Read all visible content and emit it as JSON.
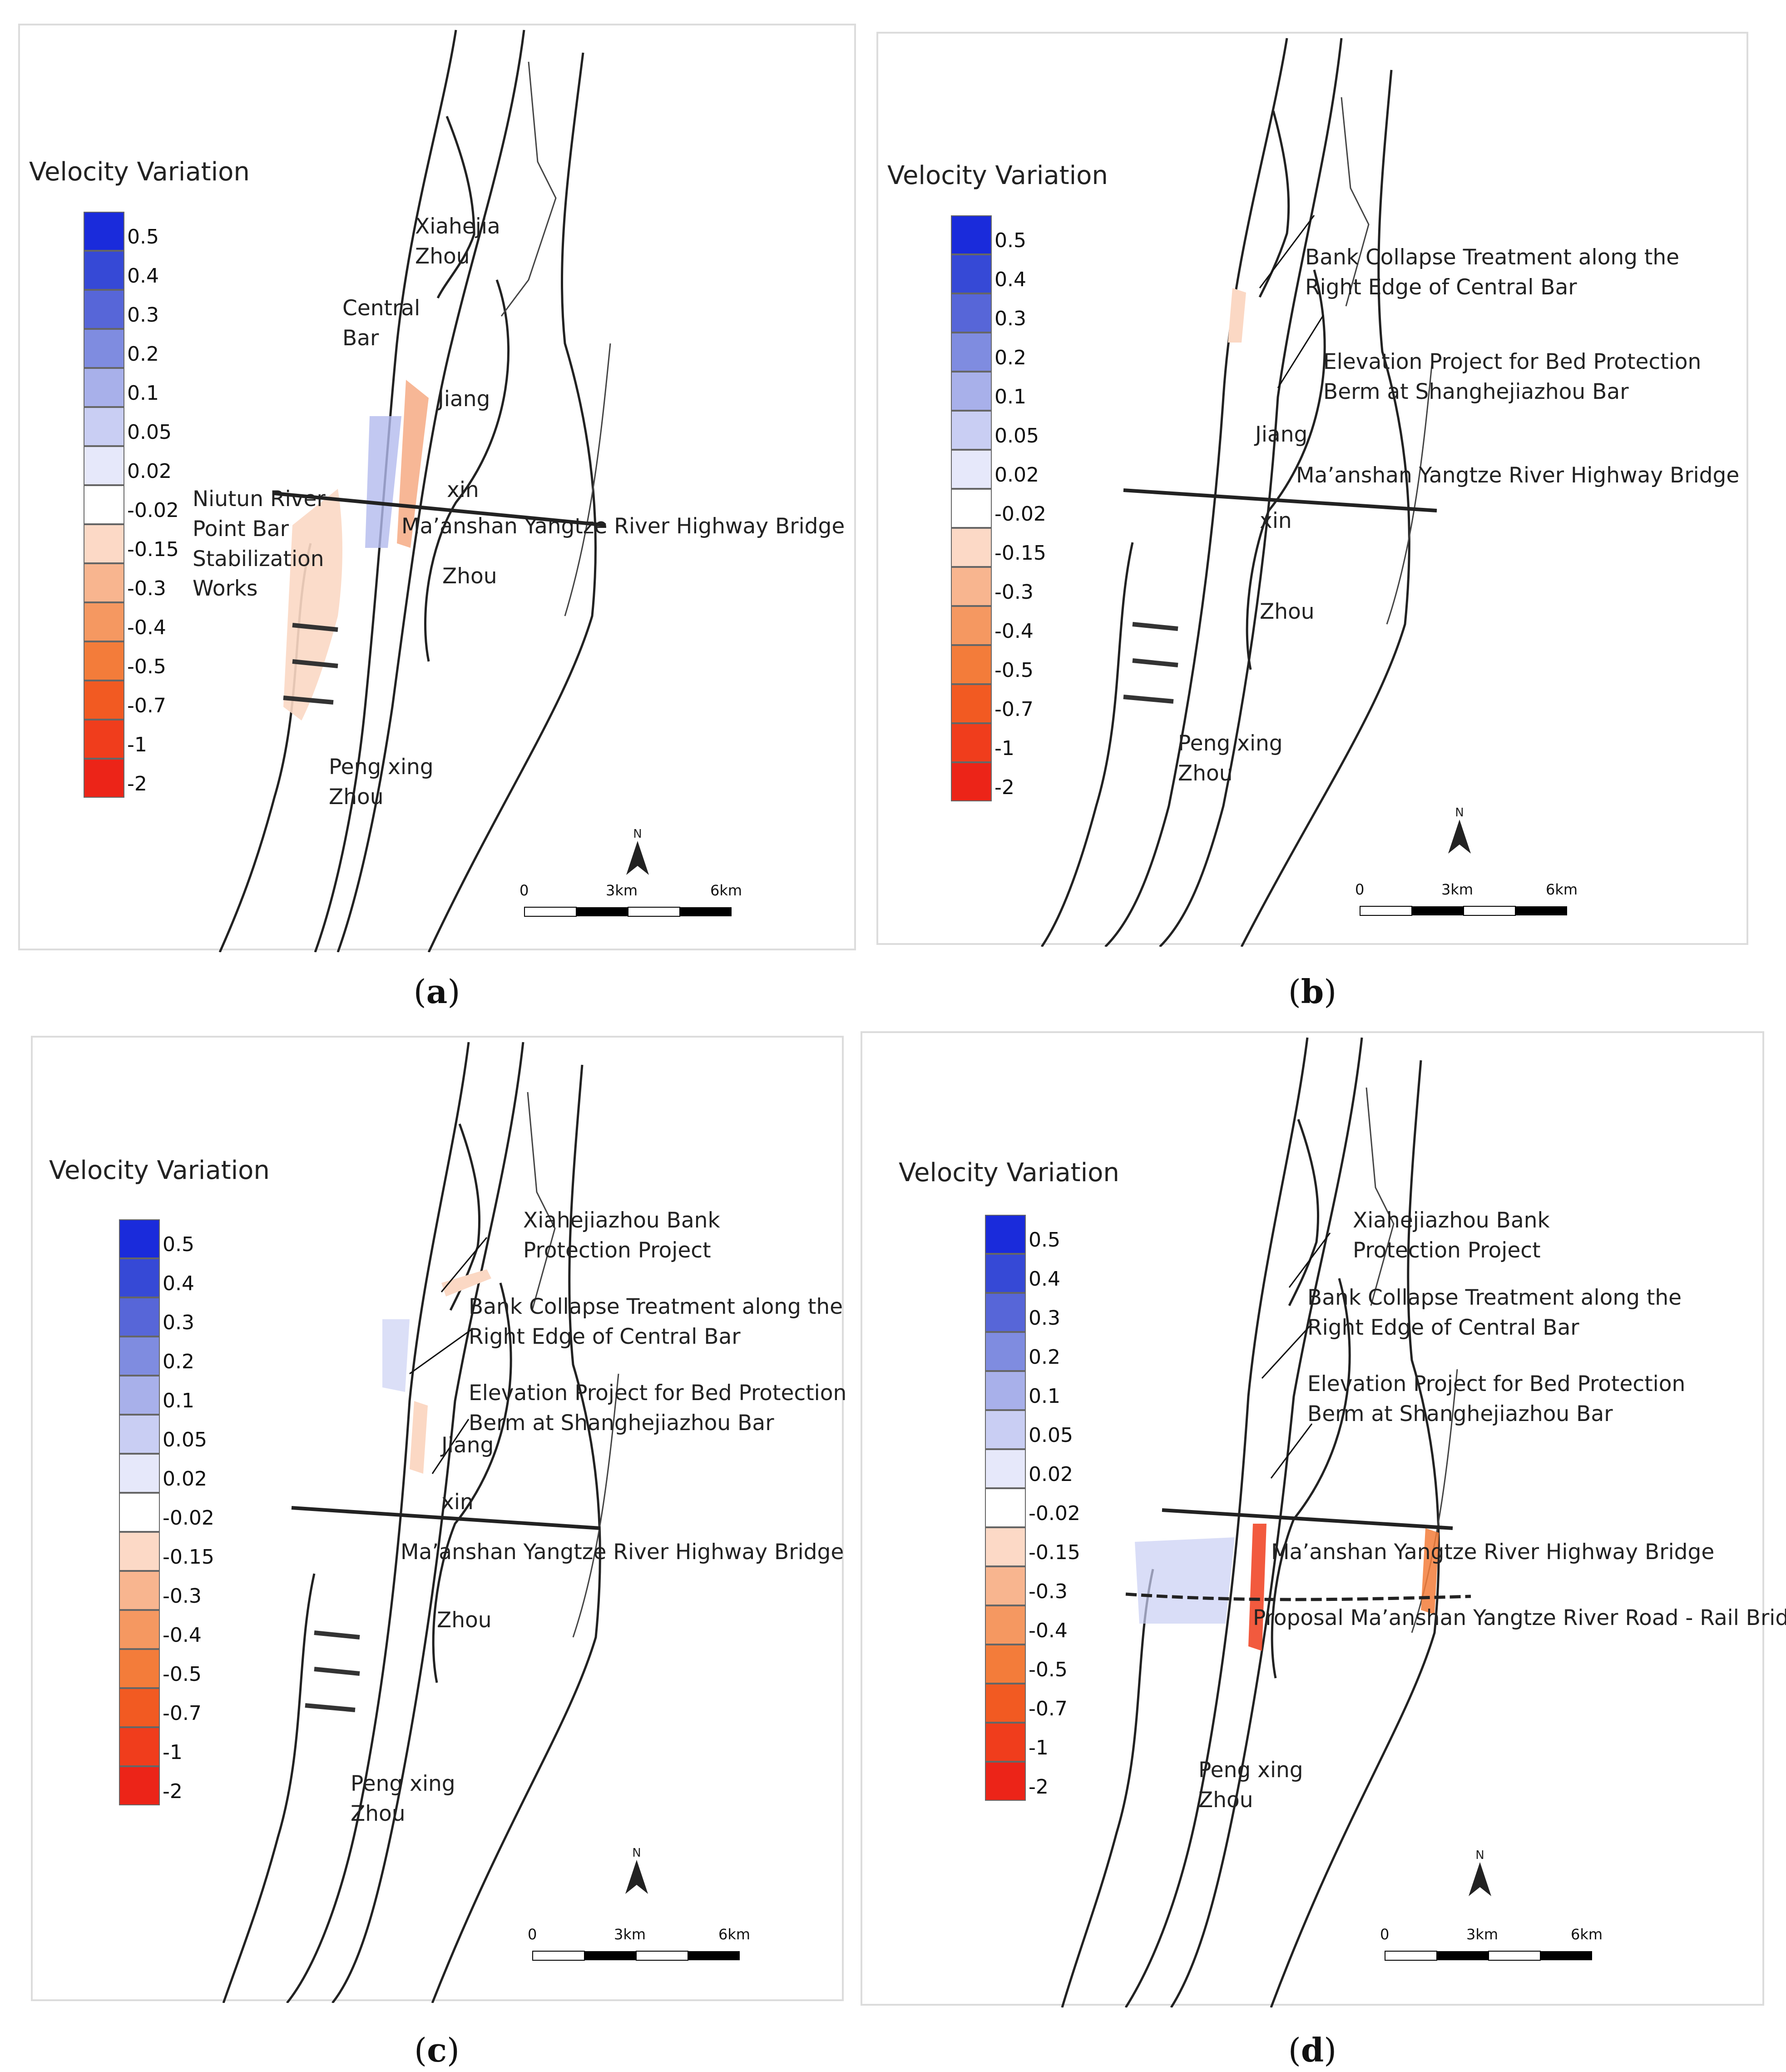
{
  "legend": {
    "title": "Velocity Variation",
    "entries": [
      {
        "label": "0.5",
        "color": "#1a2bdb"
      },
      {
        "label": "0.4",
        "color": "#3649d6"
      },
      {
        "label": "0.3",
        "color": "#5766d8"
      },
      {
        "label": "0.2",
        "color": "#7f8ce0"
      },
      {
        "label": "0.1",
        "color": "#a8b0ea"
      },
      {
        "label": "0.05",
        "color": "#c9cef3"
      },
      {
        "label": "0.02",
        "color": "#e6e8fa"
      },
      {
        "label": "-0.02",
        "color": "#ffffff"
      },
      {
        "label": "-0.15",
        "color": "#fcd9c6"
      },
      {
        "label": "-0.3",
        "color": "#f8b58f"
      },
      {
        "label": "-0.4",
        "color": "#f59861"
      },
      {
        "label": "-0.5",
        "color": "#f37c3a"
      },
      {
        "label": "-0.7",
        "color": "#f25a22"
      },
      {
        "label": "-1",
        "color": "#f03d1c"
      },
      {
        "label": "-2",
        "color": "#ec2418"
      }
    ]
  },
  "scale": {
    "t0": "0",
    "t1": "3km",
    "t2": "6km"
  },
  "north": "N",
  "panels": {
    "a": {
      "caption": "a",
      "labels": {
        "xiahejia": "Xiahejia\nZhou",
        "central": "Central\nBar",
        "jiang": "Jiang",
        "xin": "xin",
        "zhou": "Zhou",
        "niutun": "Niutun River\nPoint Bar\nStabilization\nWorks",
        "bridge": "Ma’anshan Yangtze River Highway Bridge",
        "peng": "Peng xing\nZhou"
      }
    },
    "b": {
      "caption": "b",
      "labels": {
        "bank": "Bank Collapse Treatment along the\nRight Edge of Central Bar",
        "elev": "Elevation Project for Bed Protection\nBerm at Shanghejiazhou Bar",
        "jiang": "Jiang",
        "bridge": "Ma’anshan Yangtze River Highway Bridge",
        "xin": "xin",
        "zhou": "Zhou",
        "peng": "Peng xing\nZhou"
      }
    },
    "c": {
      "caption": "c",
      "labels": {
        "xiahe": "Xiahejiazhou Bank\nProtection Project",
        "bank": "Bank Collapse Treatment along the\nRight Edge of Central Bar",
        "elev": "Elevation Project for Bed Protection\nBerm at Shanghejiazhou Bar",
        "jiang": "Jiang",
        "xin": "xin",
        "bridge": "Ma’anshan Yangtze River Highway Bridge",
        "zhou": "Zhou",
        "peng": "Peng xing\nZhou"
      }
    },
    "d": {
      "caption": "d",
      "labels": {
        "xiahe": "Xiahejiazhou Bank\nProtection Project",
        "bank": "Bank Collapse Treatment along the\nRight Edge of Central Bar",
        "elev": "Elevation Project for Bed Protection\nBerm at Shanghejiazhou Bar",
        "bridge": "Ma’anshan Yangtze River Highway Bridge",
        "proposal": "Proposal Ma’anshan Yangtze River Road - Rail Bridge",
        "peng": "Peng xing\nZhou"
      }
    }
  }
}
